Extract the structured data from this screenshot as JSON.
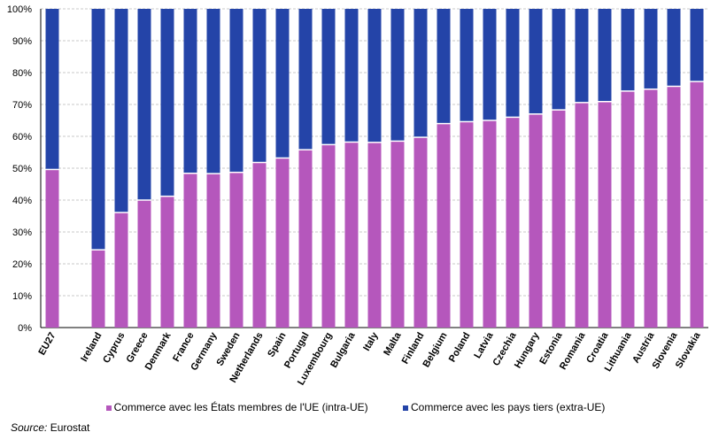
{
  "chart_data": {
    "type": "bar",
    "stacked": true,
    "categories": [
      "EU27",
      "Ireland",
      "Cyprus",
      "Greece",
      "Denmark",
      "France",
      "Germany",
      "Sweden",
      "Netherlands",
      "Spain",
      "Portugal",
      "Luxembourg",
      "Bulgaria",
      "Italy",
      "Malta",
      "Finland",
      "Belgium",
      "Poland",
      "Latvia",
      "Czechia",
      "Hungary",
      "Estonia",
      "Romania",
      "Croatia",
      "Lithuania",
      "Austria",
      "Slovenia",
      "Slovakia"
    ],
    "series": [
      {
        "name": "Commerce avec les États membres de l'UE (intra-UE)",
        "color": "#B557BC",
        "values": [
          49.6,
          24.4,
          36.1,
          40.0,
          41.2,
          48.4,
          48.3,
          48.7,
          51.8,
          53.2,
          55.8,
          57.4,
          58.2,
          58.1,
          58.5,
          59.7,
          64.0,
          64.6,
          65.0,
          66.0,
          67.0,
          68.3,
          70.6,
          70.9,
          74.2,
          74.8,
          75.7,
          77.2
        ]
      },
      {
        "name": "Commerce avec les pays tiers (extra-UE)",
        "color": "#2444A8",
        "values": [
          50.4,
          75.6,
          63.9,
          60.0,
          58.8,
          51.6,
          51.7,
          51.3,
          48.2,
          46.8,
          44.2,
          42.6,
          41.8,
          41.9,
          41.5,
          40.3,
          36.0,
          35.4,
          35.0,
          34.0,
          33.0,
          31.7,
          29.4,
          29.1,
          25.8,
          25.2,
          24.3,
          22.8
        ]
      }
    ],
    "yticks": [
      "0%",
      "10%",
      "20%",
      "30%",
      "40%",
      "50%",
      "60%",
      "70%",
      "80%",
      "90%",
      "100%"
    ],
    "ylim": [
      0,
      100
    ],
    "grid": true,
    "legend_position": "bottom",
    "title": "",
    "xlabel": "",
    "ylabel": ""
  },
  "source": {
    "label": "Source:",
    "value": "Eurostat"
  }
}
